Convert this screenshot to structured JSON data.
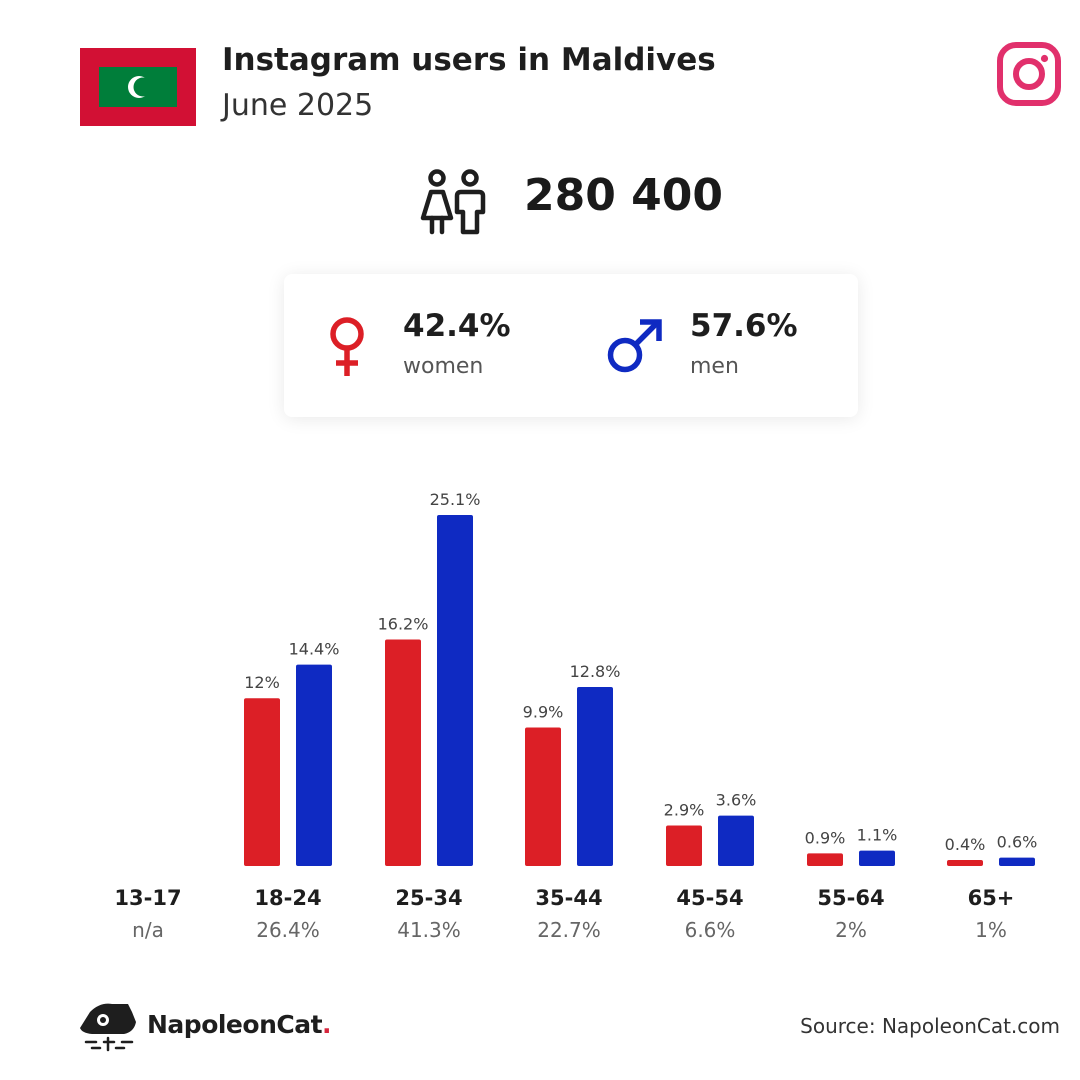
{
  "header": {
    "title": "Instagram users in Maldives",
    "subtitle": "June 2025"
  },
  "total_users": "280 400",
  "gender": {
    "women": {
      "pct": "42.4%",
      "label": "women"
    },
    "men": {
      "pct": "57.6%",
      "label": "men"
    }
  },
  "colors": {
    "women": "#dc1f26",
    "men": "#0f2ac2",
    "flag_red": "#d21034",
    "flag_green": "#007e3a",
    "instagram": "#e1306c"
  },
  "icons": [
    "flag-maldives-icon",
    "instagram-logo-icon",
    "people-icon",
    "female-symbol-icon",
    "male-symbol-icon",
    "napoleoncat-logo-icon"
  ],
  "chart_data": {
    "type": "bar",
    "categories": [
      "13-17",
      "18-24",
      "25-34",
      "35-44",
      "45-54",
      "55-64",
      "65+"
    ],
    "category_totals": [
      "n/a",
      "26.4%",
      "41.3%",
      "22.7%",
      "6.6%",
      "2%",
      "1%"
    ],
    "series": [
      {
        "name": "women",
        "values": [
          null,
          12,
          16.2,
          9.9,
          2.9,
          0.9,
          0.4
        ],
        "labels": [
          "",
          "12%",
          "16.2%",
          "9.9%",
          "2.9%",
          "0.9%",
          "0.4%"
        ]
      },
      {
        "name": "men",
        "values": [
          null,
          14.4,
          25.1,
          12.8,
          3.6,
          1.1,
          0.6
        ],
        "labels": [
          "",
          "14.4%",
          "25.1%",
          "12.8%",
          "3.6%",
          "1.1%",
          "0.6%"
        ]
      }
    ],
    "title": "",
    "xlabel": "",
    "ylabel": "",
    "ylim": [
      0,
      25.1
    ],
    "grid": false
  },
  "footer": {
    "brand": "NapoleonCat",
    "brand_dot": ".",
    "source": "Source: NapoleonCat.com"
  }
}
